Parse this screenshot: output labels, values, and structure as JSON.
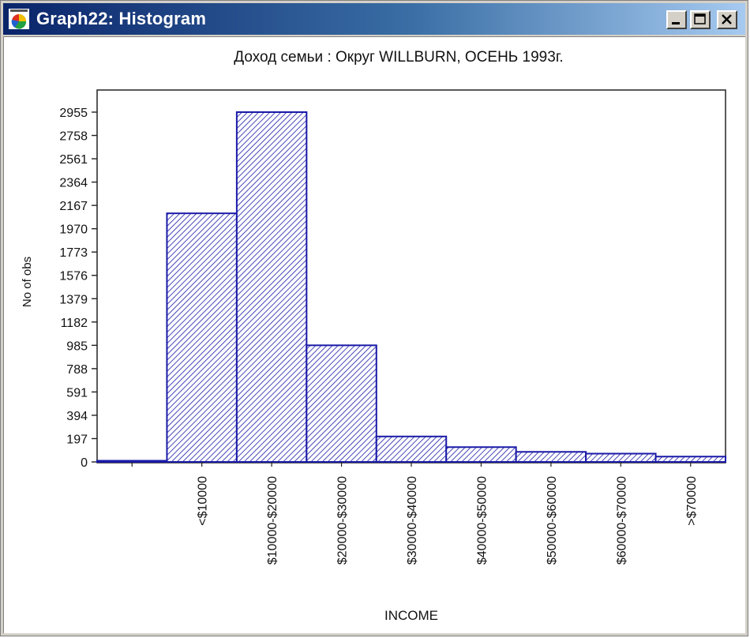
{
  "window": {
    "title": "Graph22: Histogram",
    "icon": "statistica-graph-icon",
    "controls": {
      "minimize": "minimize-icon",
      "maximize": "maximize-icon",
      "close": "close-icon"
    }
  },
  "colors": {
    "bar_stroke": "#1a1aa8",
    "bar_hatch": "#1a1aa8",
    "titlebar_start": "#0a246a",
    "titlebar_end": "#a6caf0"
  },
  "chart_data": {
    "type": "bar",
    "title": "Доход семьи : Округ WILLBURN, ОСЕНЬ 1993г.",
    "xlabel": "INCOME",
    "ylabel": "No of obs",
    "categories": [
      "",
      "<$10000",
      "$10000-$20000",
      "$20000-$30000",
      "$30000-$40000",
      "$40000-$50000",
      "$50000-$60000",
      "$60000-$70000",
      ">$70000"
    ],
    "values": [
      0,
      2100,
      2955,
      985,
      215,
      125,
      85,
      70,
      45
    ],
    "yticks": [
      0,
      197,
      394,
      591,
      788,
      985,
      1182,
      1379,
      1576,
      1773,
      1970,
      2167,
      2364,
      2561,
      2758,
      2955
    ],
    "ylim": [
      0,
      3000
    ],
    "grid": false,
    "fill": "diagonal-hatch"
  }
}
